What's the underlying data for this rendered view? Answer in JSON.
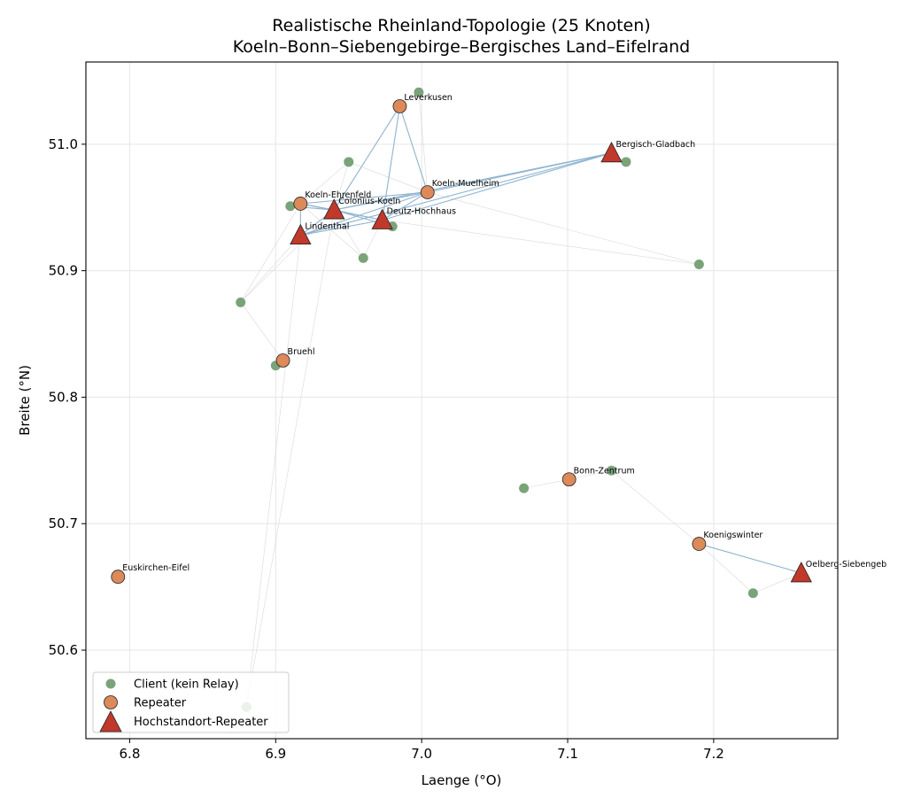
{
  "chart_data": {
    "type": "scatter",
    "title": "Realistische Rheinland-Topologie (25 Knoten)",
    "subtitle": "Koeln–Bonn–Siebengebirge–Bergisches Land–Eifelrand",
    "xlabel": "Laenge (°O)",
    "ylabel": "Breite (°N)",
    "xlim": [
      6.77,
      7.285
    ],
    "ylim": [
      50.53,
      51.065
    ],
    "xticks": [
      6.8,
      6.9,
      7.0,
      7.1,
      7.2
    ],
    "yticks": [
      50.6,
      50.7,
      50.8,
      50.9,
      51.0
    ],
    "xtick_labels": [
      "6.8",
      "6.9",
      "7.0",
      "7.1",
      "7.2"
    ],
    "ytick_labels": [
      "50.6",
      "50.7",
      "50.8",
      "50.9",
      "51.0"
    ],
    "grid": true,
    "legend_position": "bottom-left",
    "colors": {
      "client": "#7aa37a",
      "repeater": "#dc8a5a",
      "high_site": "#c0392b",
      "strong_link": "#8fb4cf",
      "weak_link": "#cfcfcf"
    },
    "series": [
      {
        "name": "Client (kein Relay)",
        "marker": "circle",
        "points": [
          {
            "x": 6.998,
            "y": 51.041
          },
          {
            "x": 6.95,
            "y": 50.986
          },
          {
            "x": 7.14,
            "y": 50.986
          },
          {
            "x": 6.91,
            "y": 50.951
          },
          {
            "x": 6.98,
            "y": 50.935
          },
          {
            "x": 6.96,
            "y": 50.91
          },
          {
            "x": 7.19,
            "y": 50.905
          },
          {
            "x": 6.876,
            "y": 50.875
          },
          {
            "x": 6.9,
            "y": 50.825
          },
          {
            "x": 7.13,
            "y": 50.742
          },
          {
            "x": 7.07,
            "y": 50.728
          },
          {
            "x": 7.227,
            "y": 50.645
          },
          {
            "x": 6.88,
            "y": 50.555
          }
        ]
      },
      {
        "name": "Repeater",
        "marker": "circle",
        "points": [
          {
            "x": 6.985,
            "y": 51.03,
            "label": "Leverkusen"
          },
          {
            "x": 7.004,
            "y": 50.962,
            "label": "Koeln-Muelheim"
          },
          {
            "x": 6.917,
            "y": 50.953,
            "label": "Koeln-Ehrenfeld"
          },
          {
            "x": 6.905,
            "y": 50.829,
            "label": "Bruehl"
          },
          {
            "x": 7.101,
            "y": 50.735,
            "label": "Bonn-Zentrum"
          },
          {
            "x": 7.19,
            "y": 50.684,
            "label": "Koenigswinter"
          },
          {
            "x": 6.792,
            "y": 50.658,
            "label": "Euskirchen-Eifel"
          }
        ]
      },
      {
        "name": "Hochstandort-Repeater",
        "marker": "triangle",
        "points": [
          {
            "x": 7.13,
            "y": 50.993,
            "label": "Bergisch-Gladbach"
          },
          {
            "x": 6.94,
            "y": 50.948,
            "label": "Colonius-Koeln"
          },
          {
            "x": 6.973,
            "y": 50.94,
            "label": "Deutz-Hochhaus"
          },
          {
            "x": 6.917,
            "y": 50.928,
            "label": "Lindenthal"
          },
          {
            "x": 7.26,
            "y": 50.661,
            "label": "Oelberg-Siebengeb"
          }
        ]
      }
    ],
    "edges_strong": [
      [
        [
          6.985,
          51.03
        ],
        [
          6.94,
          50.948
        ]
      ],
      [
        [
          6.985,
          51.03
        ],
        [
          7.004,
          50.962
        ]
      ],
      [
        [
          6.985,
          51.03
        ],
        [
          6.973,
          50.94
        ]
      ],
      [
        [
          7.13,
          50.993
        ],
        [
          6.94,
          50.948
        ]
      ],
      [
        [
          7.13,
          50.993
        ],
        [
          6.973,
          50.94
        ]
      ],
      [
        [
          7.13,
          50.993
        ],
        [
          7.004,
          50.962
        ]
      ],
      [
        [
          7.13,
          50.993
        ],
        [
          6.917,
          50.928
        ]
      ],
      [
        [
          6.917,
          50.953
        ],
        [
          7.004,
          50.962
        ]
      ],
      [
        [
          6.917,
          50.953
        ],
        [
          6.94,
          50.948
        ]
      ],
      [
        [
          6.917,
          50.953
        ],
        [
          6.973,
          50.94
        ]
      ],
      [
        [
          6.917,
          50.953
        ],
        [
          6.917,
          50.928
        ]
      ],
      [
        [
          6.94,
          50.948
        ],
        [
          6.973,
          50.94
        ]
      ],
      [
        [
          6.94,
          50.948
        ],
        [
          7.004,
          50.962
        ]
      ],
      [
        [
          6.94,
          50.948
        ],
        [
          6.917,
          50.928
        ]
      ],
      [
        [
          6.973,
          50.94
        ],
        [
          7.004,
          50.962
        ]
      ],
      [
        [
          6.917,
          50.928
        ],
        [
          6.973,
          50.94
        ]
      ],
      [
        [
          6.917,
          50.928
        ],
        [
          7.004,
          50.962
        ]
      ],
      [
        [
          6.91,
          50.951
        ],
        [
          6.94,
          50.948
        ]
      ],
      [
        [
          6.98,
          50.935
        ],
        [
          6.94,
          50.948
        ]
      ],
      [
        [
          7.19,
          50.684
        ],
        [
          7.26,
          50.661
        ]
      ]
    ],
    "edges_weak": [
      [
        [
          6.95,
          50.986
        ],
        [
          6.917,
          50.953
        ]
      ],
      [
        [
          6.95,
          50.986
        ],
        [
          7.004,
          50.962
        ]
      ],
      [
        [
          6.95,
          50.986
        ],
        [
          6.94,
          50.948
        ]
      ],
      [
        [
          6.998,
          51.041
        ],
        [
          6.985,
          51.03
        ]
      ],
      [
        [
          6.998,
          51.041
        ],
        [
          7.004,
          50.962
        ]
      ],
      [
        [
          6.96,
          50.91
        ],
        [
          6.917,
          50.953
        ]
      ],
      [
        [
          6.96,
          50.91
        ],
        [
          6.973,
          50.94
        ]
      ],
      [
        [
          6.96,
          50.91
        ],
        [
          6.94,
          50.948
        ]
      ],
      [
        [
          7.19,
          50.905
        ],
        [
          6.973,
          50.94
        ]
      ],
      [
        [
          7.19,
          50.905
        ],
        [
          7.004,
          50.962
        ]
      ],
      [
        [
          6.876,
          50.875
        ],
        [
          6.917,
          50.928
        ]
      ],
      [
        [
          6.876,
          50.875
        ],
        [
          6.94,
          50.948
        ]
      ],
      [
        [
          6.876,
          50.875
        ],
        [
          6.917,
          50.953
        ]
      ],
      [
        [
          6.876,
          50.875
        ],
        [
          6.905,
          50.829
        ]
      ],
      [
        [
          7.14,
          50.986
        ],
        [
          7.13,
          50.993
        ]
      ],
      [
        [
          7.13,
          50.742
        ],
        [
          7.101,
          50.735
        ]
      ],
      [
        [
          7.13,
          50.742
        ],
        [
          7.19,
          50.684
        ]
      ],
      [
        [
          7.07,
          50.728
        ],
        [
          7.101,
          50.735
        ]
      ],
      [
        [
          7.227,
          50.645
        ],
        [
          7.19,
          50.684
        ]
      ],
      [
        [
          7.227,
          50.645
        ],
        [
          7.26,
          50.661
        ]
      ],
      [
        [
          6.88,
          50.555
        ],
        [
          6.94,
          50.948
        ]
      ],
      [
        [
          6.88,
          50.555
        ],
        [
          6.917,
          50.928
        ]
      ]
    ]
  }
}
